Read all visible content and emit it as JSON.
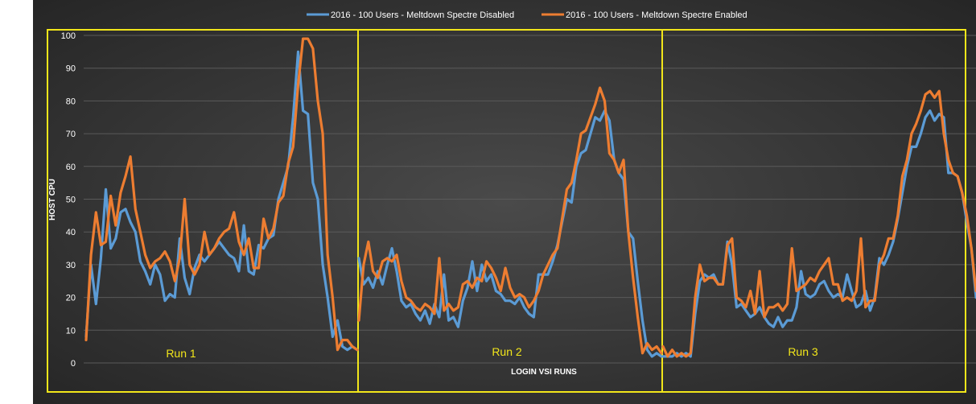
{
  "chart_data": {
    "type": "line",
    "title": "",
    "xlabel": "LOGIN VSI RUNS",
    "ylabel": "HOST CPU",
    "ylim": [
      0,
      100
    ],
    "yticks": [
      0,
      10,
      20,
      30,
      40,
      50,
      60,
      70,
      80,
      90,
      100
    ],
    "grid": true,
    "legend_position": "top",
    "colors": {
      "background": "#2f2f2f",
      "grid": "#5a5a5a",
      "frames": "#f2e61a",
      "text": "#ffffff"
    },
    "runs": [
      "Run 1",
      "Run 2",
      "Run 3"
    ],
    "series": [
      {
        "name": "2016 - 100 Users - Meltdown Spectre Disabled",
        "color": "#5b9bd5",
        "values": [
          [
            8,
            30,
            18,
            32,
            53,
            35,
            38,
            46,
            47,
            43,
            40,
            31,
            28,
            24,
            30,
            27,
            19,
            21,
            20,
            38,
            26,
            21,
            29,
            33,
            31,
            33,
            35,
            37,
            35,
            33,
            32,
            28,
            42,
            28,
            27,
            36,
            35,
            38,
            39,
            50,
            55,
            60,
            75,
            95,
            77,
            76,
            55,
            50,
            30,
            20,
            8,
            13,
            5,
            4,
            5,
            4
          ],
          [
            32,
            24,
            26,
            23,
            28,
            24,
            30,
            35,
            28,
            19,
            17,
            18,
            15,
            13,
            16,
            12,
            18,
            14,
            27,
            13,
            14,
            11,
            19,
            23,
            31,
            22,
            30,
            25,
            27,
            22,
            21,
            19,
            19,
            18,
            20,
            17,
            15,
            14,
            27,
            27,
            27,
            31,
            36,
            43,
            50,
            49,
            60,
            64,
            65,
            70,
            75,
            74,
            77,
            74,
            62,
            58,
            56,
            40,
            38,
            25,
            13,
            4,
            2,
            3,
            2
          ],
          [
            2,
            2,
            2,
            3,
            2,
            3,
            2,
            15,
            25,
            27,
            26,
            27,
            24,
            24,
            37,
            30,
            17,
            18,
            16,
            14,
            15,
            17,
            14,
            12,
            11,
            14,
            11,
            13,
            13,
            17,
            28,
            21,
            20,
            21,
            24,
            25,
            22,
            20,
            21,
            20,
            27,
            22,
            17,
            18,
            22,
            16,
            20,
            32,
            30,
            33,
            37,
            44,
            52,
            60,
            66,
            66,
            70,
            75,
            77,
            74,
            76,
            75,
            58,
            58,
            57,
            52,
            43,
            35,
            20
          ]
        ]
      },
      {
        "name": "2016 - 100 Users - Meltdown Spectre Enabled",
        "color": "#ed7d31",
        "values": [
          [
            7,
            33,
            46,
            36,
            37,
            51,
            42,
            52,
            57,
            63,
            47,
            40,
            33,
            29,
            31,
            32,
            34,
            31,
            25,
            32,
            50,
            30,
            27,
            30,
            40,
            33,
            35,
            38,
            40,
            41,
            46,
            37,
            33,
            38,
            29,
            29,
            44,
            38,
            41,
            49,
            51,
            61,
            66,
            85,
            99,
            99,
            96,
            80,
            70,
            33,
            20,
            4,
            7,
            7,
            5,
            4
          ],
          [
            13,
            30,
            37,
            28,
            26,
            31,
            32,
            31,
            33,
            25,
            20,
            19,
            17,
            16,
            18,
            17,
            15,
            32,
            16,
            18,
            16,
            17,
            24,
            25,
            23,
            26,
            25,
            31,
            29,
            26,
            22,
            29,
            23,
            20,
            21,
            20,
            17,
            19,
            22,
            27,
            30,
            33,
            35,
            44,
            53,
            55,
            62,
            70,
            71,
            75,
            79,
            84,
            80,
            64,
            62,
            58,
            62,
            40,
            26,
            14,
            3,
            6,
            4,
            5,
            3
          ],
          [
            5,
            2,
            4,
            2,
            3,
            2,
            3,
            20,
            30,
            25,
            26,
            26,
            24,
            24,
            36,
            38,
            20,
            19,
            17,
            22,
            15,
            28,
            14,
            17,
            17,
            18,
            16,
            18,
            35,
            22,
            23,
            24,
            26,
            25,
            28,
            30,
            32,
            24,
            24,
            19,
            20,
            19,
            22,
            38,
            17,
            19,
            19,
            30,
            33,
            38,
            38,
            45,
            57,
            62,
            70,
            73,
            77,
            82,
            83,
            81,
            83,
            70,
            62,
            58,
            57,
            52,
            45,
            35,
            22
          ]
        ]
      }
    ]
  }
}
